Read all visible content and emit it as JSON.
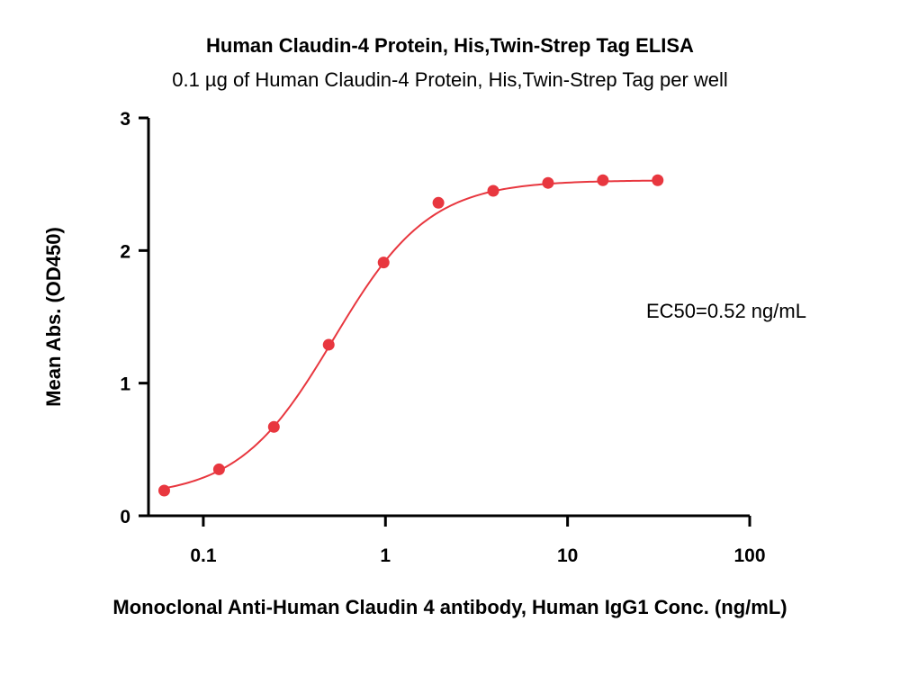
{
  "chart_data": {
    "type": "scatter",
    "title": "Human Claudin-4 Protein, His,Twin-Strep Tag ELISA",
    "subtitle": "0.1 µg of Human Claudin-4 Protein, His,Twin-Strep Tag per well",
    "xlabel": "Monoclonal Anti-Human Claudin 4 antibody, Human IgG1 Conc. (ng/mL)",
    "ylabel": "Mean Abs. (OD450)",
    "xscale": "log",
    "xlim": [
      0.05,
      100
    ],
    "ylim": [
      0,
      3
    ],
    "xticks": [
      {
        "value": 0.1,
        "label": "0.1"
      },
      {
        "value": 1,
        "label": "1"
      },
      {
        "value": 10,
        "label": "10"
      },
      {
        "value": 100,
        "label": "100"
      }
    ],
    "yticks": [
      {
        "value": 0,
        "label": "0"
      },
      {
        "value": 1,
        "label": "1"
      },
      {
        "value": 2,
        "label": "2"
      },
      {
        "value": 3,
        "label": "3"
      }
    ],
    "grid": false,
    "legend": "none",
    "annotation": "EC50=0.52 ng/mL",
    "series": [
      {
        "color": "#e8373f",
        "x": [
          0.061,
          0.122,
          0.244,
          0.488,
          0.977,
          1.953,
          3.906,
          7.813,
          15.625,
          31.25
        ],
        "y": [
          0.19,
          0.35,
          0.67,
          1.29,
          1.91,
          2.36,
          2.45,
          2.51,
          2.53,
          2.53
        ]
      }
    ],
    "fit": {
      "type": "4PL",
      "bottom": 0.14,
      "top": 2.53,
      "ec50": 0.52,
      "hill": 1.65,
      "color": "#e8373f"
    }
  }
}
